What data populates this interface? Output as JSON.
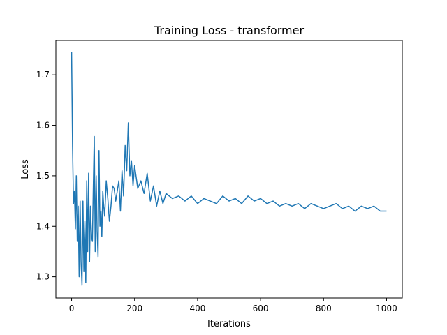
{
  "chart_data": {
    "type": "line",
    "title": "Training Loss - transformer",
    "xlabel": "Iterations",
    "ylabel": "Loss",
    "xlim": [
      -50,
      1050
    ],
    "ylim": [
      1.258,
      1.768
    ],
    "xticks": [
      0,
      200,
      400,
      600,
      800,
      1000
    ],
    "yticks": [
      1.3,
      1.4,
      1.5,
      1.6,
      1.7
    ],
    "xtick_labels": [
      "0",
      "200",
      "400",
      "600",
      "800",
      "1000"
    ],
    "ytick_labels": [
      "1.3",
      "1.4",
      "1.5",
      "1.6",
      "1.7"
    ],
    "grid": false,
    "series": [
      {
        "name": "",
        "color": "#1f77b4",
        "x": [
          0,
          3,
          6,
          9,
          12,
          15,
          18,
          21,
          24,
          27,
          30,
          33,
          36,
          39,
          42,
          45,
          48,
          51,
          54,
          57,
          60,
          63,
          66,
          69,
          72,
          75,
          78,
          81,
          84,
          87,
          90,
          93,
          96,
          99,
          102,
          105,
          110,
          115,
          120,
          125,
          130,
          135,
          140,
          145,
          150,
          155,
          160,
          165,
          170,
          175,
          180,
          185,
          190,
          195,
          200,
          210,
          220,
          230,
          240,
          250,
          260,
          270,
          280,
          290,
          300,
          320,
          340,
          360,
          380,
          400,
          420,
          440,
          460,
          480,
          500,
          520,
          540,
          560,
          580,
          600,
          620,
          640,
          660,
          680,
          700,
          720,
          740,
          760,
          780,
          800,
          820,
          840,
          860,
          880,
          900,
          920,
          940,
          960,
          980,
          1000
        ],
        "y": [
          1.745,
          1.56,
          1.445,
          1.47,
          1.395,
          1.5,
          1.37,
          1.44,
          1.3,
          1.45,
          1.33,
          1.283,
          1.45,
          1.31,
          1.41,
          1.288,
          1.49,
          1.35,
          1.505,
          1.33,
          1.44,
          1.38,
          1.37,
          1.48,
          1.578,
          1.35,
          1.5,
          1.39,
          1.34,
          1.55,
          1.4,
          1.43,
          1.38,
          1.47,
          1.44,
          1.42,
          1.49,
          1.455,
          1.41,
          1.44,
          1.48,
          1.475,
          1.45,
          1.47,
          1.49,
          1.43,
          1.51,
          1.46,
          1.56,
          1.51,
          1.605,
          1.5,
          1.53,
          1.48,
          1.52,
          1.475,
          1.49,
          1.465,
          1.505,
          1.45,
          1.48,
          1.44,
          1.47,
          1.445,
          1.465,
          1.455,
          1.46,
          1.45,
          1.46,
          1.445,
          1.455,
          1.45,
          1.445,
          1.46,
          1.45,
          1.455,
          1.445,
          1.46,
          1.45,
          1.455,
          1.445,
          1.45,
          1.44,
          1.445,
          1.44,
          1.445,
          1.435,
          1.445,
          1.44,
          1.435,
          1.44,
          1.445,
          1.435,
          1.44,
          1.43,
          1.44,
          1.435,
          1.44,
          1.43,
          1.43
        ]
      }
    ]
  }
}
